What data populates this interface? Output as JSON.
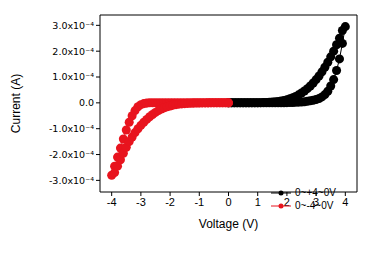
{
  "chart_data": {
    "type": "scatter",
    "marker": "circle",
    "line_style": "solid",
    "grid": false,
    "legend": "lower right",
    "x_label": "Voltage (V)",
    "y_label": "Current (A)",
    "xlim": [
      -4.4,
      4.4
    ],
    "xticks": [
      -4,
      -3,
      -2,
      -1,
      0,
      1,
      2,
      3,
      4
    ],
    "ylim": [
      -0.000345,
      0.00034
    ],
    "yticks": [
      {
        "value": -0.0003,
        "label": "-3.0x10⁻⁴"
      },
      {
        "value": -0.0002,
        "label": "-2.0x10⁻⁴"
      },
      {
        "value": -0.0001,
        "label": "-1.0x10⁻⁴"
      },
      {
        "value": 0,
        "label": "0.0"
      },
      {
        "value": 0.0001,
        "label": "1.0x10⁻⁴"
      },
      {
        "value": 0.0002,
        "label": "2.0x10⁻⁴"
      },
      {
        "value": 0.0003,
        "label": "3.0x10⁻⁴"
      }
    ],
    "series": [
      {
        "name": "0~+4~0V",
        "color": "#000000",
        "x": [
          0,
          0.1,
          0.2,
          0.3,
          0.4,
          0.5,
          0.6,
          0.7,
          0.8,
          0.9,
          1.0,
          1.1,
          1.2,
          1.3,
          1.4,
          1.5,
          1.6,
          1.7,
          1.8,
          1.9,
          2.0,
          2.1,
          2.2,
          2.3,
          2.4,
          2.5,
          2.6,
          2.7,
          2.8,
          2.9,
          3.0,
          3.1,
          3.2,
          3.3,
          3.4,
          3.5,
          3.6,
          3.7,
          3.8,
          3.9,
          4.0,
          3.9,
          3.8,
          3.7,
          3.6,
          3.5,
          3.4,
          3.3,
          3.2,
          3.1,
          3.0,
          2.9,
          2.8,
          2.7,
          2.6,
          2.5,
          2.4,
          2.3,
          2.2,
          2.1,
          2.0,
          1.9,
          1.8,
          1.7,
          1.6,
          1.5,
          1.4,
          1.3,
          1.2,
          1.1,
          1.0,
          0.9,
          0.8,
          0.7,
          0.6,
          0.5,
          0.4,
          0.3,
          0.2,
          0.1,
          0
        ],
        "values": [
          0,
          0,
          0,
          0,
          0,
          0,
          0,
          0,
          0,
          0,
          0,
          0,
          0,
          0,
          0,
          0,
          2e-07,
          3e-07,
          4e-07,
          6e-07,
          8e-07,
          1.1e-06,
          1.5e-06,
          2e-06,
          2.7e-06,
          3.5e-06,
          4.5e-06,
          6e-06,
          8e-06,
          1e-05,
          1.3e-05,
          1.7e-05,
          2.3e-05,
          3.2e-05,
          4.5e-05,
          6.5e-05,
          9e-05,
          0.000125,
          0.00017,
          0.00023,
          0.000295,
          0.00028,
          0.00025,
          0.000225,
          0.0002,
          0.000178,
          0.000157,
          0.000138,
          0.00012,
          0.000104,
          9e-05,
          7.7e-05,
          6.5e-05,
          5.5e-05,
          4.6e-05,
          3.8e-05,
          3.1e-05,
          2.5e-05,
          2e-05,
          1.6e-05,
          1.2e-05,
          9e-06,
          7e-06,
          5e-06,
          4e-06,
          3e-06,
          2e-06,
          1.5e-06,
          1e-06,
          7e-07,
          5e-07,
          3e-07,
          2e-07,
          1e-07,
          0,
          0,
          0,
          0,
          0,
          0,
          0
        ]
      },
      {
        "name": "0~-4~0V",
        "color": "#e8141e",
        "x": [
          0,
          -0.1,
          -0.2,
          -0.3,
          -0.4,
          -0.5,
          -0.6,
          -0.7,
          -0.8,
          -0.9,
          -1.0,
          -1.1,
          -1.2,
          -1.3,
          -1.4,
          -1.5,
          -1.6,
          -1.7,
          -1.8,
          -1.9,
          -2.0,
          -2.1,
          -2.2,
          -2.3,
          -2.4,
          -2.5,
          -2.6,
          -2.7,
          -2.8,
          -2.9,
          -3.0,
          -3.1,
          -3.2,
          -3.3,
          -3.4,
          -3.5,
          -3.6,
          -3.7,
          -3.8,
          -3.9,
          -4.0,
          -3.9,
          -3.8,
          -3.7,
          -3.6,
          -3.5,
          -3.4,
          -3.3,
          -3.2,
          -3.1,
          -3.0,
          -2.9,
          -2.8,
          -2.7,
          -2.6,
          -2.5,
          -2.4,
          -2.3,
          -2.2,
          -2.1,
          -2.0,
          -1.9,
          -1.8,
          -1.7,
          -1.6,
          -1.5,
          -1.4,
          -1.3,
          -1.2,
          -1.1,
          -1.0,
          -0.9,
          -0.8,
          -0.7,
          -0.6,
          -0.5,
          -0.4,
          -0.3,
          -0.2,
          -0.1,
          0
        ],
        "values": [
          0,
          0,
          0,
          0,
          0,
          0,
          0,
          0,
          0,
          0,
          0,
          0,
          0,
          0,
          0,
          0,
          0,
          0,
          0,
          0,
          0,
          0,
          0,
          0,
          0,
          0,
          0,
          0,
          -1e-06,
          -3e-06,
          -7e-06,
          -1.5e-05,
          -3e-05,
          -5e-05,
          -7.5e-05,
          -0.000105,
          -0.00014,
          -0.000175,
          -0.00021,
          -0.000245,
          -0.00028,
          -0.00027,
          -0.000245,
          -0.00022,
          -0.000195,
          -0.000172,
          -0.00015,
          -0.000132,
          -0.000115,
          -0.0001,
          -8.7e-05,
          -7.5e-05,
          -6.4e-05,
          -5.4e-05,
          -4.5e-05,
          -3.7e-05,
          -3e-05,
          -2.4e-05,
          -1.9e-05,
          -1.5e-05,
          -1.2e-05,
          -9e-06,
          -7e-06,
          -5e-06,
          -4e-06,
          -3e-06,
          -2e-06,
          -1.5e-06,
          -1e-06,
          -7e-07,
          -5e-07,
          -3e-07,
          -2e-07,
          -1e-07,
          0,
          0,
          0,
          0,
          0,
          0,
          0
        ]
      }
    ]
  }
}
